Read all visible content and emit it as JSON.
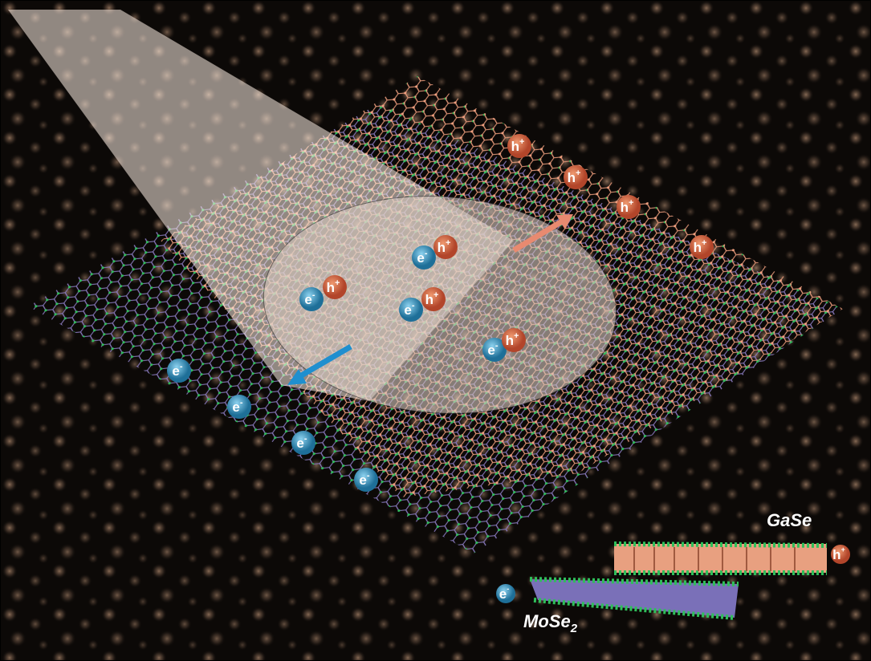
{
  "particles": [
    {
      "base": "h",
      "sup": "+"
    },
    {
      "base": "h",
      "sup": "+"
    },
    {
      "base": "h",
      "sup": "+"
    },
    {
      "base": "h",
      "sup": "+"
    },
    {
      "base": "e",
      "sup": "-"
    },
    {
      "base": "h",
      "sup": "+"
    },
    {
      "base": "e",
      "sup": "-"
    },
    {
      "base": "h",
      "sup": "+"
    },
    {
      "base": "e",
      "sup": "-"
    },
    {
      "base": "h",
      "sup": "+"
    },
    {
      "base": "e",
      "sup": "-"
    },
    {
      "base": "h",
      "sup": "+"
    },
    {
      "base": "e",
      "sup": "-"
    },
    {
      "base": "e",
      "sup": "-"
    },
    {
      "base": "e",
      "sup": "-"
    },
    {
      "base": "e",
      "sup": "-"
    },
    {
      "base": "e",
      "sup": "-"
    },
    {
      "base": "h",
      "sup": "+"
    }
  ],
  "labels": {
    "top_layer": "GaSe",
    "bottom_layer": {
      "base": "MoSe",
      "sub": "2"
    }
  }
}
